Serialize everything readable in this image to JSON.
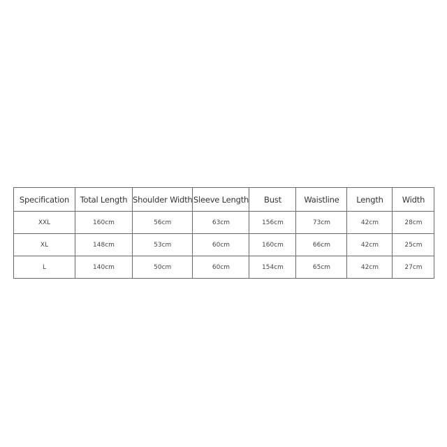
{
  "table": {
    "headers": [
      "Specification",
      "Total Length",
      "Shoulder Width",
      "Sleeve Length",
      "Bust",
      "Waistline",
      "Length",
      "Width"
    ],
    "rows": [
      [
        "XXL",
        "160cm",
        "56cm",
        "63cm",
        "156cm",
        "73cm",
        "42cm",
        "28cm"
      ],
      [
        "XL",
        "148cm",
        "53cm",
        "60cm",
        "160cm",
        "66cm",
        "42cm",
        "25cm"
      ],
      [
        "L",
        "140cm",
        "50cm",
        "60cm",
        "154cm",
        "65cm",
        "42cm",
        "27cm"
      ]
    ]
  }
}
